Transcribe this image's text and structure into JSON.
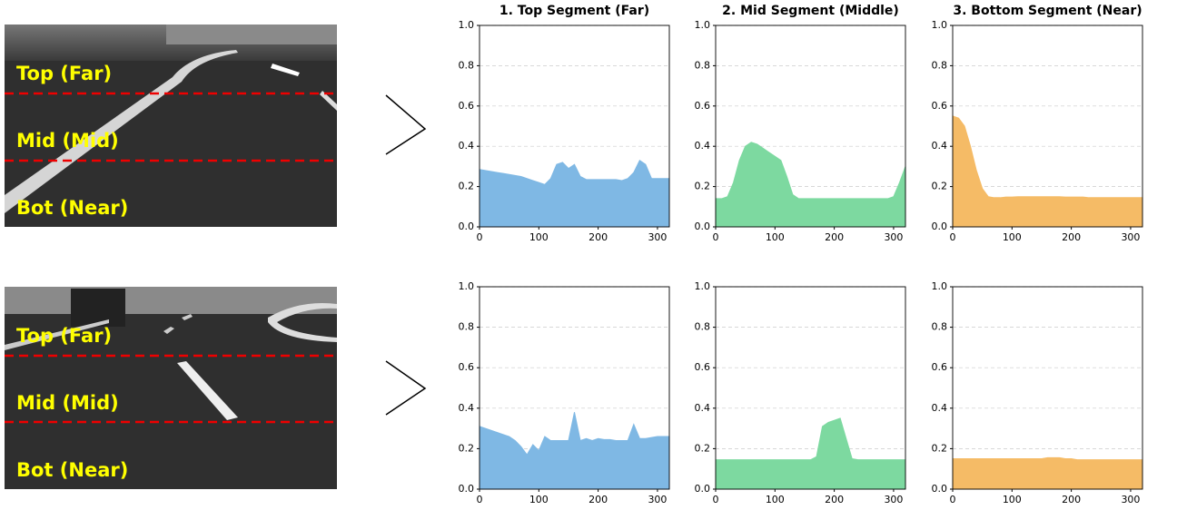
{
  "images": [
    {
      "labels": [
        "Top (Far)",
        "Mid (Mid)",
        "Bot (Near)"
      ]
    },
    {
      "labels": [
        "Top (Far)",
        "Mid (Mid)",
        "Bot (Near)"
      ]
    }
  ],
  "chart_data": [
    {
      "type": "area",
      "title": "1. Top Segment (Far)",
      "color": "#7fb8e4",
      "x": [
        0,
        10,
        20,
        30,
        40,
        50,
        60,
        70,
        80,
        90,
        100,
        110,
        120,
        130,
        140,
        150,
        160,
        170,
        180,
        190,
        200,
        210,
        220,
        230,
        240,
        250,
        260,
        270,
        280,
        290,
        300,
        310,
        320
      ],
      "values": [
        0.285,
        0.28,
        0.275,
        0.27,
        0.265,
        0.26,
        0.255,
        0.25,
        0.24,
        0.23,
        0.22,
        0.21,
        0.24,
        0.31,
        0.32,
        0.29,
        0.31,
        0.25,
        0.235,
        0.235,
        0.235,
        0.235,
        0.235,
        0.235,
        0.23,
        0.24,
        0.27,
        0.33,
        0.31,
        0.24,
        0.24,
        0.24,
        0.24
      ],
      "xlim": [
        0,
        320
      ],
      "xticks": [
        0,
        100,
        200,
        300
      ],
      "ylim": [
        0,
        1
      ],
      "yticks": [
        {
          "value": 0,
          "label": "0.0"
        },
        0.2,
        0.4,
        0.6,
        0.8,
        {
          "value": 1,
          "label": "1.0"
        }
      ],
      "grid": true
    },
    {
      "type": "area",
      "title": "2. Mid Segment (Middle)",
      "color": "#7dd9a0",
      "x": [
        0,
        10,
        20,
        30,
        40,
        50,
        60,
        70,
        80,
        90,
        100,
        110,
        120,
        130,
        140,
        150,
        160,
        170,
        180,
        190,
        200,
        210,
        220,
        230,
        240,
        250,
        260,
        270,
        280,
        290,
        300,
        310,
        320
      ],
      "values": [
        0.14,
        0.14,
        0.15,
        0.22,
        0.33,
        0.4,
        0.42,
        0.41,
        0.39,
        0.37,
        0.35,
        0.33,
        0.25,
        0.16,
        0.14,
        0.14,
        0.14,
        0.14,
        0.14,
        0.14,
        0.14,
        0.14,
        0.14,
        0.14,
        0.14,
        0.14,
        0.14,
        0.14,
        0.14,
        0.14,
        0.15,
        0.22,
        0.3
      ],
      "xlim": [
        0,
        320
      ],
      "xticks": [
        0,
        100,
        200,
        300
      ],
      "ylim": [
        0,
        1
      ],
      "yticks": [
        {
          "value": 0,
          "label": "0.0"
        },
        0.2,
        0.4,
        0.6,
        0.8,
        {
          "value": 1,
          "label": "1.0"
        }
      ],
      "grid": true
    },
    {
      "type": "area",
      "title": "3. Bottom Segment (Near)",
      "color": "#f5bb66",
      "x": [
        0,
        10,
        20,
        30,
        40,
        50,
        60,
        70,
        80,
        90,
        100,
        110,
        120,
        130,
        140,
        150,
        160,
        170,
        180,
        190,
        200,
        210,
        220,
        230,
        240,
        250,
        260,
        270,
        280,
        290,
        300,
        310,
        320
      ],
      "values": [
        0.55,
        0.54,
        0.5,
        0.4,
        0.28,
        0.19,
        0.15,
        0.145,
        0.145,
        0.148,
        0.148,
        0.15,
        0.15,
        0.15,
        0.15,
        0.15,
        0.15,
        0.15,
        0.15,
        0.148,
        0.148,
        0.148,
        0.148,
        0.145,
        0.145,
        0.145,
        0.145,
        0.145,
        0.145,
        0.145,
        0.145,
        0.145,
        0.145
      ],
      "xlim": [
        0,
        320
      ],
      "xticks": [
        0,
        100,
        200,
        300
      ],
      "ylim": [
        0,
        1
      ],
      "yticks": [
        {
          "value": 0,
          "label": "0.0"
        },
        0.2,
        0.4,
        0.6,
        0.8,
        {
          "value": 1,
          "label": "1.0"
        }
      ],
      "grid": true
    },
    {
      "type": "area",
      "color": "#7fb8e4",
      "x": [
        0,
        10,
        20,
        30,
        40,
        50,
        60,
        70,
        80,
        90,
        100,
        110,
        120,
        130,
        140,
        150,
        160,
        170,
        180,
        190,
        200,
        210,
        220,
        230,
        240,
        250,
        260,
        270,
        280,
        290,
        300,
        310,
        320
      ],
      "values": [
        0.31,
        0.3,
        0.29,
        0.28,
        0.27,
        0.26,
        0.24,
        0.21,
        0.17,
        0.22,
        0.19,
        0.26,
        0.24,
        0.24,
        0.24,
        0.24,
        0.38,
        0.24,
        0.25,
        0.24,
        0.25,
        0.245,
        0.245,
        0.24,
        0.24,
        0.24,
        0.32,
        0.25,
        0.25,
        0.255,
        0.26,
        0.26,
        0.26
      ],
      "xlim": [
        0,
        320
      ],
      "xticks": [
        0,
        100,
        200,
        300
      ],
      "ylim": [
        0,
        1
      ],
      "yticks": [
        {
          "value": 0,
          "label": "0.0"
        },
        0.2,
        0.4,
        0.6,
        0.8,
        {
          "value": 1,
          "label": "1.0"
        }
      ],
      "grid": true
    },
    {
      "type": "area",
      "color": "#7dd9a0",
      "x": [
        0,
        10,
        20,
        30,
        40,
        50,
        60,
        70,
        80,
        90,
        100,
        110,
        120,
        130,
        140,
        150,
        160,
        170,
        180,
        190,
        200,
        210,
        220,
        230,
        240,
        250,
        260,
        270,
        280,
        290,
        300,
        310,
        320
      ],
      "values": [
        0.145,
        0.145,
        0.145,
        0.145,
        0.145,
        0.145,
        0.145,
        0.145,
        0.145,
        0.145,
        0.145,
        0.145,
        0.145,
        0.145,
        0.145,
        0.145,
        0.145,
        0.16,
        0.31,
        0.33,
        0.34,
        0.35,
        0.25,
        0.15,
        0.145,
        0.145,
        0.145,
        0.145,
        0.145,
        0.145,
        0.145,
        0.145,
        0.145
      ],
      "xlim": [
        0,
        320
      ],
      "xticks": [
        0,
        100,
        200,
        300
      ],
      "ylim": [
        0,
        1
      ],
      "yticks": [
        {
          "value": 0,
          "label": "0.0"
        },
        0.2,
        0.4,
        0.6,
        0.8,
        {
          "value": 1,
          "label": "1.0"
        }
      ],
      "grid": true
    },
    {
      "type": "area",
      "color": "#f5bb66",
      "x": [
        0,
        10,
        20,
        30,
        40,
        50,
        60,
        70,
        80,
        90,
        100,
        110,
        120,
        130,
        140,
        150,
        160,
        170,
        180,
        190,
        200,
        210,
        220,
        230,
        240,
        250,
        260,
        270,
        280,
        290,
        300,
        310,
        320
      ],
      "values": [
        0.15,
        0.15,
        0.15,
        0.15,
        0.15,
        0.15,
        0.15,
        0.15,
        0.15,
        0.15,
        0.15,
        0.15,
        0.15,
        0.15,
        0.15,
        0.15,
        0.155,
        0.155,
        0.155,
        0.15,
        0.15,
        0.145,
        0.145,
        0.145,
        0.145,
        0.145,
        0.145,
        0.145,
        0.145,
        0.145,
        0.145,
        0.145,
        0.145
      ],
      "xlim": [
        0,
        320
      ],
      "xticks": [
        0,
        100,
        200,
        300
      ],
      "ylim": [
        0,
        1
      ],
      "yticks": [
        {
          "value": 0,
          "label": "0.0"
        },
        0.2,
        0.4,
        0.6,
        0.8,
        {
          "value": 1,
          "label": "1.0"
        }
      ],
      "grid": true
    }
  ]
}
